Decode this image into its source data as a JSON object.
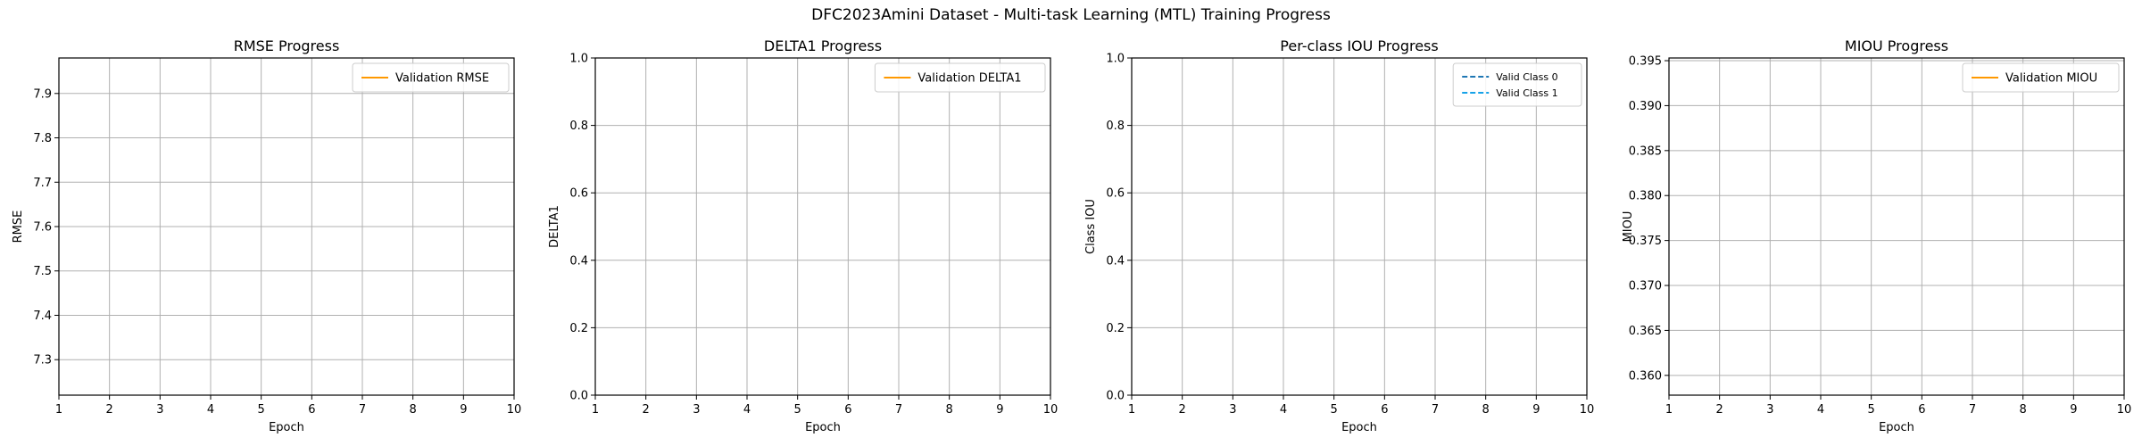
{
  "figure": {
    "title": "DFC2023Amini Dataset - Multi-task Learning (MTL) Training Progress"
  },
  "chart_data": [
    {
      "type": "line",
      "title": "RMSE Progress",
      "xlabel": "Epoch",
      "ylabel": "RMSE",
      "xlim": [
        1,
        10
      ],
      "ylim": [
        7.22,
        7.98
      ],
      "xticks": [
        1,
        2,
        3,
        4,
        5,
        6,
        7,
        8,
        9,
        10
      ],
      "yticks": [
        7.3,
        7.4,
        7.5,
        7.6,
        7.7,
        7.8,
        7.9
      ],
      "ytick_labels": [
        "7.3",
        "7.4",
        "7.5",
        "7.6",
        "7.7",
        "7.8",
        "7.9"
      ],
      "grid": true,
      "legend": "upper right",
      "series": [
        {
          "name": "Validation RMSE",
          "color": "#ff9900",
          "dash": "solid",
          "x": [],
          "y": []
        }
      ]
    },
    {
      "type": "line",
      "title": "DELTA1 Progress",
      "xlabel": "Epoch",
      "ylabel": "DELTA1",
      "xlim": [
        1,
        10
      ],
      "ylim": [
        0,
        1
      ],
      "xticks": [
        1,
        2,
        3,
        4,
        5,
        6,
        7,
        8,
        9,
        10
      ],
      "yticks": [
        0,
        0.2,
        0.4,
        0.6,
        0.8,
        1.0
      ],
      "ytick_labels": [
        "0.0",
        "0.2",
        "0.4",
        "0.6",
        "0.8",
        "1.0"
      ],
      "grid": true,
      "legend": "upper right",
      "series": [
        {
          "name": "Validation DELTA1",
          "color": "#ff9900",
          "dash": "solid",
          "x": [],
          "y": []
        }
      ]
    },
    {
      "type": "line",
      "title": "Per-class IOU Progress",
      "xlabel": "Epoch",
      "ylabel": "Class IOU",
      "xlim": [
        1,
        10
      ],
      "ylim": [
        0,
        1
      ],
      "xticks": [
        1,
        2,
        3,
        4,
        5,
        6,
        7,
        8,
        9,
        10
      ],
      "yticks": [
        0,
        0.2,
        0.4,
        0.6,
        0.8,
        1.0
      ],
      "ytick_labels": [
        "0.0",
        "0.2",
        "0.4",
        "0.6",
        "0.8",
        "1.0"
      ],
      "grid": true,
      "legend": "upper right",
      "series": [
        {
          "name": "Valid Class 0",
          "color": "#1f77b4",
          "dash": "dashed",
          "x": [],
          "y": []
        },
        {
          "name": "Valid Class 1",
          "color": "#17a2e8",
          "dash": "dashed",
          "x": [],
          "y": []
        }
      ]
    },
    {
      "type": "line",
      "title": "MIOU Progress",
      "xlabel": "Epoch",
      "ylabel": "MIOU",
      "xlim": [
        1,
        10
      ],
      "ylim": [
        0.3578,
        0.3953
      ],
      "xticks": [
        1,
        2,
        3,
        4,
        5,
        6,
        7,
        8,
        9,
        10
      ],
      "yticks": [
        0.36,
        0.365,
        0.37,
        0.375,
        0.38,
        0.385,
        0.39,
        0.395
      ],
      "ytick_labels": [
        "0.360",
        "0.365",
        "0.370",
        "0.375",
        "0.380",
        "0.385",
        "0.390",
        "0.395"
      ],
      "grid": true,
      "legend": "upper right",
      "series": [
        {
          "name": "Validation MIOU",
          "color": "#ff9900",
          "dash": "solid",
          "x": [],
          "y": []
        }
      ]
    }
  ]
}
